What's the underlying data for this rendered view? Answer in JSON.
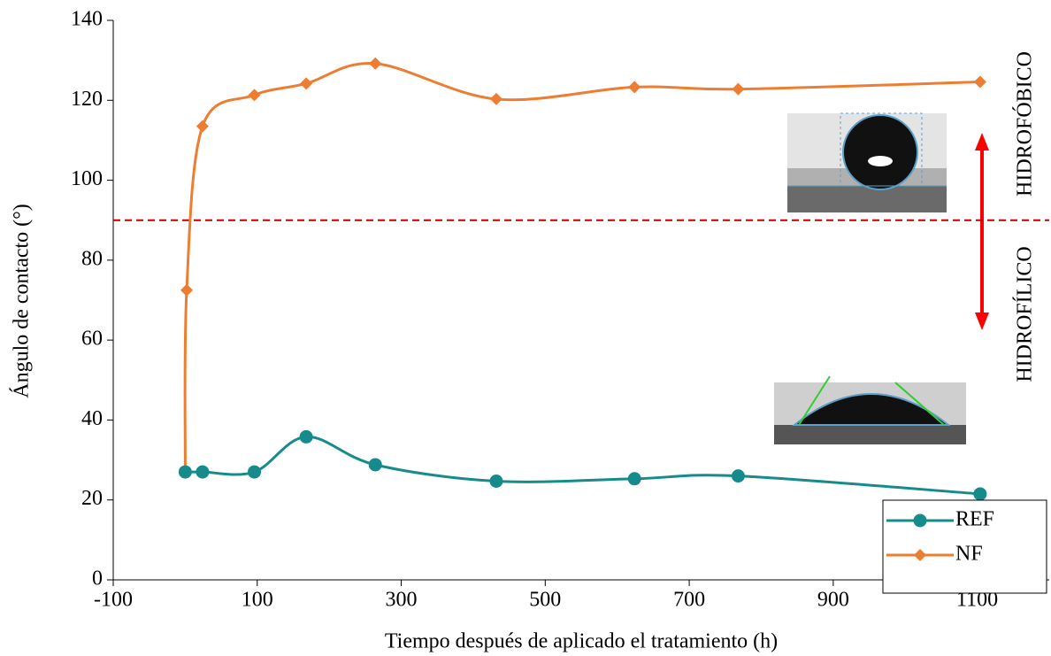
{
  "chart_data": {
    "type": "line",
    "x_label": "Tiempo después de aplicado el tratamiento (h)",
    "y_label": "Ángulo de contacto (°)",
    "xlim": [
      -100,
      1200
    ],
    "xticks": [
      -100,
      100,
      300,
      500,
      700,
      900,
      1100
    ],
    "ylim": [
      0,
      140
    ],
    "yticks": [
      0,
      20,
      40,
      60,
      80,
      100,
      120,
      140
    ],
    "grid": false,
    "smooth": true,
    "legend": "lower right",
    "series": [
      {
        "name": "REF",
        "color": "#178b8b",
        "marker": "circle",
        "x": [
          0,
          24,
          96,
          168,
          264,
          432,
          624,
          768,
          1104
        ],
        "values": [
          27,
          27,
          27,
          35.8,
          28.8,
          24.7,
          25.3,
          26,
          21.5
        ]
      },
      {
        "name": "NF",
        "color": "#ed7d31",
        "marker": "diamond",
        "x": [
          0,
          2,
          24,
          96,
          168,
          264,
          432,
          624,
          768,
          1104
        ],
        "values": [
          27,
          72.5,
          113.5,
          121.3,
          124.2,
          129.2,
          120.3,
          123.3,
          122.8,
          124.6
        ]
      }
    ],
    "reference_line": {
      "value": 90,
      "color": "#c00000"
    },
    "annotations": [
      "HIDROFÓBICO",
      "HIDROFÍLICO"
    ]
  }
}
